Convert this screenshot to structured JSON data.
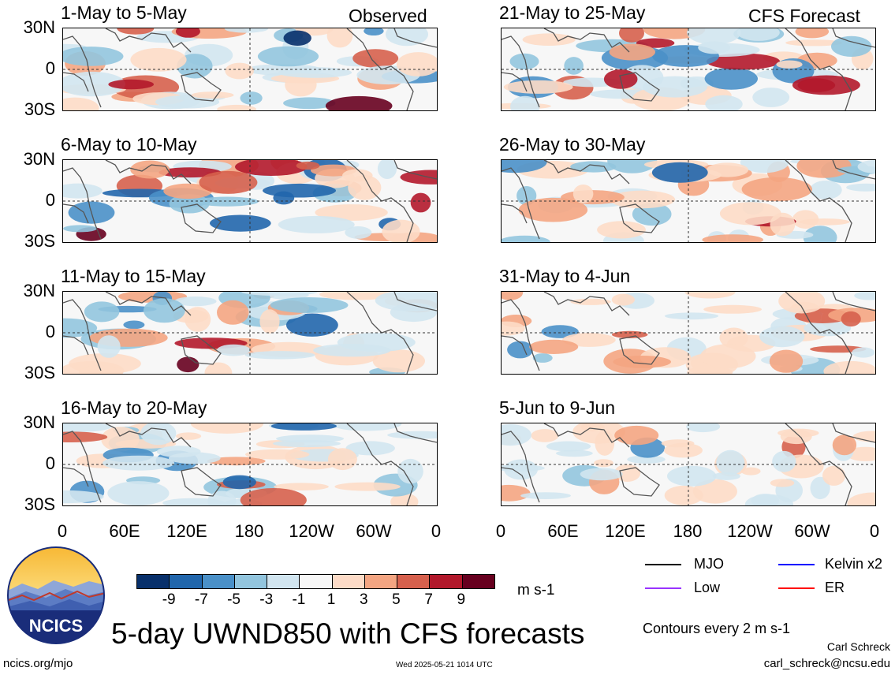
{
  "chart_data": {
    "type": "heatmap",
    "title": "5-day UWND850 with CFS forecasts",
    "variable": "UWND850",
    "units": "m s-1",
    "x_ticks": [
      "0",
      "60E",
      "120E",
      "180",
      "120W",
      "60W",
      "0"
    ],
    "y_ticks": [
      "30N",
      "0",
      "30S"
    ],
    "color_levels": [
      -9,
      -7,
      -5,
      -3,
      -1,
      1,
      3,
      5,
      7,
      9
    ],
    "colors": [
      "#08306b",
      "#2166ac",
      "#4a90c8",
      "#92c5de",
      "#d1e5f0",
      "#f7f7f7",
      "#fddbc7",
      "#f4a582",
      "#d6604d",
      "#b2182b",
      "#67001f"
    ],
    "observed_label": "Observed",
    "forecast_label": "CFS Forecast",
    "panels_observed": [
      {
        "period": "1-May to 5-May"
      },
      {
        "period": "6-May to 10-May"
      },
      {
        "period": "11-May to 15-May"
      },
      {
        "period": "16-May to 20-May"
      }
    ],
    "panels_forecast": [
      {
        "period": "21-May to 25-May"
      },
      {
        "period": "26-May to 30-May"
      },
      {
        "period": "31-May to 4-Jun"
      },
      {
        "period": "5-Jun to 9-Jun"
      }
    ]
  },
  "legend": {
    "mjo": "MJO",
    "kelvin": "Kelvin x2",
    "low": "Low",
    "er": "ER",
    "colors": {
      "mjo": "#000000",
      "kelvin": "#0000ff",
      "low": "#9933ff",
      "er": "#ff0000"
    }
  },
  "footer": {
    "title": "5-day UWND850 with CFS forecasts",
    "contours": "Contours every 2 m s-1",
    "author": "Carl Schreck",
    "email": "carl_schreck@ncsu.edu",
    "site": "ncics.org/mjo",
    "timestamp": "Wed 2025-05-21 1014 UTC",
    "logo_text": "NCICS"
  }
}
